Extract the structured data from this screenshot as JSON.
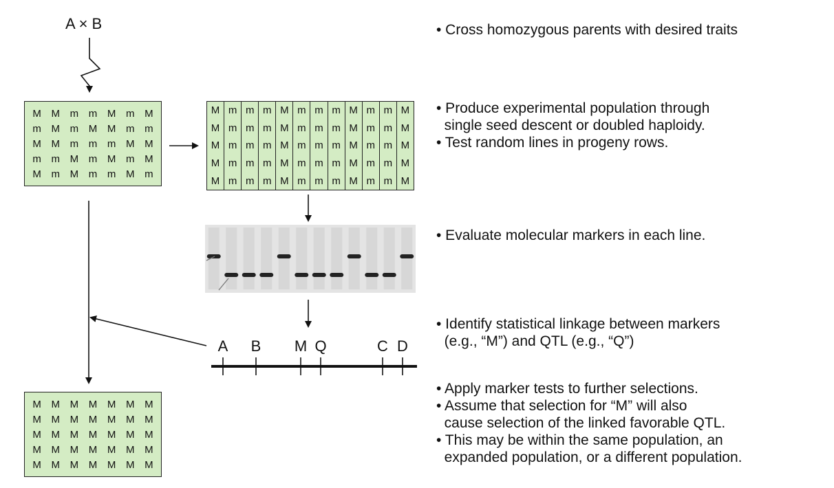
{
  "cross_label": "A × B",
  "initial_population": {
    "rows": [
      [
        "M",
        "M",
        "m",
        "m",
        "M",
        "m",
        "M"
      ],
      [
        "m",
        "M",
        "m",
        "M",
        "M",
        "m",
        "m"
      ],
      [
        "M",
        "M",
        "m",
        "m",
        "m",
        "M",
        "M"
      ],
      [
        "m",
        "m",
        "M",
        "m",
        "M",
        "m",
        "M"
      ],
      [
        "M",
        "m",
        "M",
        "m",
        "m",
        "M",
        "m"
      ]
    ]
  },
  "experimental_population": {
    "columns": [
      "M",
      "m",
      "m",
      "m",
      "M",
      "m",
      "m",
      "m",
      "M",
      "m",
      "m",
      "M"
    ]
  },
  "selected_population": {
    "rows": [
      [
        "M",
        "M",
        "M",
        "M",
        "M",
        "M",
        "M"
      ],
      [
        "M",
        "M",
        "M",
        "M",
        "M",
        "M",
        "M"
      ],
      [
        "M",
        "M",
        "M",
        "M",
        "M",
        "M",
        "M"
      ],
      [
        "M",
        "M",
        "M",
        "M",
        "M",
        "M",
        "M"
      ],
      [
        "M",
        "M",
        "M",
        "M",
        "M",
        "M",
        "M"
      ]
    ]
  },
  "gel_bands": [
    "upper",
    "lower",
    "lower",
    "lower",
    "upper",
    "lower",
    "lower",
    "lower",
    "upper",
    "lower",
    "lower",
    "upper"
  ],
  "linkage_map": {
    "markers": [
      "A",
      "B",
      "M",
      "Q",
      "C",
      "D"
    ]
  },
  "notes": {
    "step1": [
      "• Cross homozygous parents with desired traits"
    ],
    "step2": [
      "• Produce experimental population through",
      "  single seed descent or doubled haploidy.",
      "• Test random lines in progeny rows."
    ],
    "step3": [
      "• Evaluate molecular markers in each line."
    ],
    "step4": [
      "• Identify statistical linkage between markers",
      "  (e.g., “M”) and QTL (e.g., “Q”)"
    ],
    "step5": [
      "• Apply marker tests to further selections.",
      "• Assume that selection for “M” will also",
      "  cause selection of the linked favorable QTL.",
      "• This may be within the same population, an",
      "  expanded population, or a different population."
    ]
  },
  "colors": {
    "population_fill": "#d4ecc4",
    "gel_background": "#e4e4e4",
    "band": "#222222"
  }
}
